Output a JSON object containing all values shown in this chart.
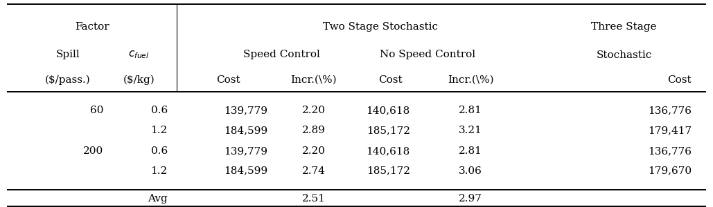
{
  "bg_color": "#ffffff",
  "text_color": "#000000",
  "font_size": 11,
  "rows": [
    [
      "60",
      "0.6",
      "139,779",
      "2.20",
      "140,618",
      "2.81",
      "136,776"
    ],
    [
      "",
      "1.2",
      "184,599",
      "2.89",
      "185,172",
      "3.21",
      "179,417"
    ],
    [
      "200",
      "0.6",
      "139,779",
      "2.20",
      "140,618",
      "2.81",
      "136,776"
    ],
    [
      "",
      "1.2",
      "184,599",
      "2.74",
      "185,172",
      "3.06",
      "179,670"
    ]
  ],
  "avg_incr1": "2.51",
  "avg_incr2": "2.97",
  "hline_lw_thick": 1.4,
  "hline_lw_thin": 0.8,
  "vline_lw": 0.8
}
